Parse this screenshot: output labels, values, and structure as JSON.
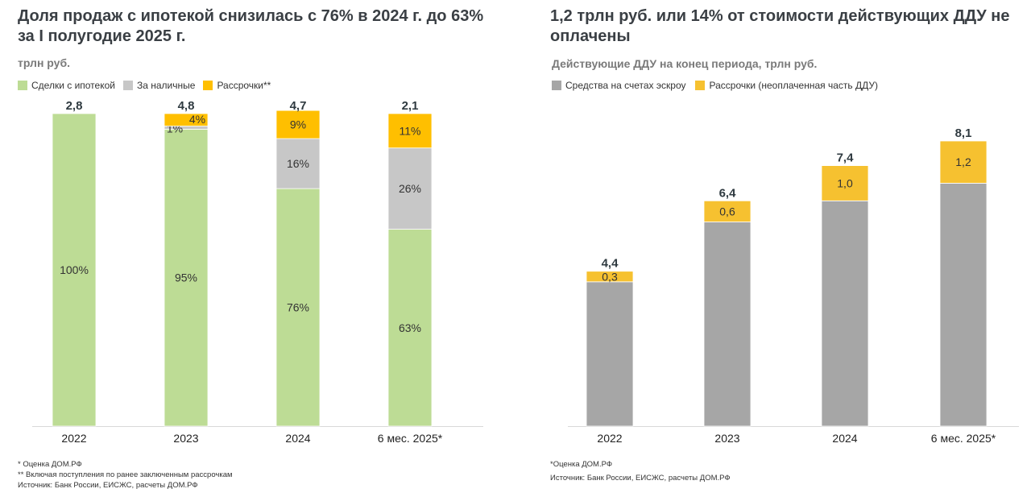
{
  "colors": {
    "mortgage": "#bddc95",
    "cash": "#c7c7c7",
    "installment": "#ffbf00",
    "escrow": "#a6a6a6",
    "installment_right": "#f6c130",
    "title": "#3a3f44"
  },
  "left": {
    "title": "Доля продаж с ипотекой снизилась с 76% в 2024 г. до 63% за I полугодие 2025 г.",
    "unit": "трлн руб.",
    "legend": [
      "Сделки с ипотекой",
      "За наличные",
      "Рассрочки**"
    ],
    "footnotes": [
      "* Оценка ДОМ.РФ",
      "** Включая поступления по ранее заключенным рассрочкам",
      "Источник: Банк России, ЕИСЖС, расчеты ДОМ.РФ"
    ]
  },
  "right": {
    "title": "1,2 трлн руб. или 14% от стоимости действующих ДДУ не оплачены",
    "subtitle": "Действующие ДДУ на конец периода, трлн руб.",
    "legend": [
      "Средства на счетах эскроу",
      "Рассрочки (неоплаченная часть ДДУ)"
    ],
    "footnotes": [
      "*Оценка ДОМ.РФ",
      "Источник: Банк России, ЕИСЖС, расчеты ДОМ.РФ"
    ]
  },
  "chart_data": [
    {
      "type": "bar",
      "stacked": "percent",
      "title": "Доля продаж с ипотекой снизилась с 76% в 2024 г. до 63% за I полугодие 2025 г.",
      "ylabel": "трлн руб.",
      "categories": [
        "2022",
        "2023",
        "2024",
        "6 мес. 2025*"
      ],
      "totals": [
        "2,8",
        "4,8",
        "4,7",
        "2,1"
      ],
      "series": [
        {
          "name": "Сделки с ипотекой",
          "values": [
            100,
            95,
            76,
            63
          ],
          "labels": [
            "100%",
            "95%",
            "76%",
            "63%"
          ]
        },
        {
          "name": "За наличные",
          "values": [
            0,
            1,
            16,
            26
          ],
          "labels": [
            "",
            "1%",
            "16%",
            "26%"
          ]
        },
        {
          "name": "Рассрочки**",
          "values": [
            0,
            4,
            9,
            11
          ],
          "labels": [
            "",
            "4%",
            "9%",
            "11%"
          ]
        }
      ],
      "ylim": [
        0,
        100
      ],
      "legend": "top-left"
    },
    {
      "type": "bar",
      "stacked": "value",
      "title": "1,2 трлн руб. или 14% от стоимости действующих ДДУ не оплачены",
      "ylabel": "Действующие ДДУ на конец периода, трлн руб.",
      "categories": [
        "2022",
        "2023",
        "2024",
        "6 мес. 2025*"
      ],
      "totals": [
        4.4,
        6.4,
        7.4,
        8.1
      ],
      "total_labels": [
        "4,4",
        "6,4",
        "7,4",
        "8,1"
      ],
      "series": [
        {
          "name": "Средства на счетах эскроу",
          "values": [
            4.1,
            5.8,
            6.4,
            6.9
          ],
          "labels": [
            "",
            "",
            "",
            ""
          ]
        },
        {
          "name": "Рассрочки (неоплаченная часть ДДУ)",
          "values": [
            0.3,
            0.6,
            1.0,
            1.2
          ],
          "labels": [
            "0,3",
            "0,6",
            "1,0",
            "1,2"
          ]
        }
      ],
      "ylim": [
        0,
        8.1
      ],
      "legend": "top-left"
    }
  ]
}
